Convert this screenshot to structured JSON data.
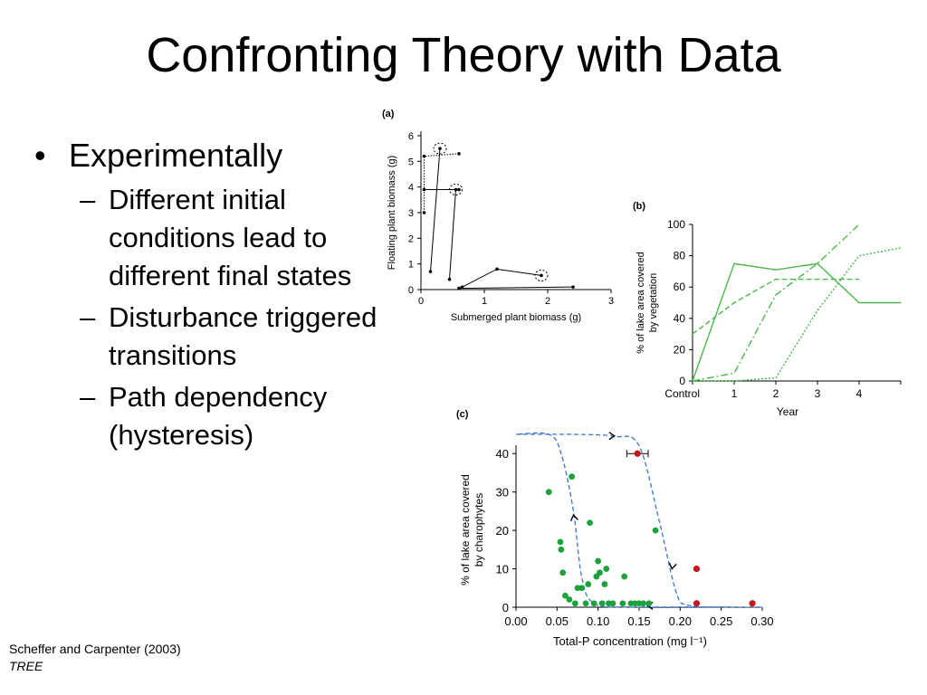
{
  "slide": {
    "title": "Confronting Theory with Data",
    "bullet": "Experimentally",
    "sub_bullets": [
      "Different initial conditions lead to different final states",
      "Disturbance triggered transitions",
      "Path dependency (hysteresis)"
    ],
    "citation": {
      "authors": "Scheffer and Carpenter (2003)",
      "journal": "TREE"
    }
  },
  "chart_data": [
    {
      "panel": "(a)",
      "type": "line",
      "xlabel": "Submerged plant biomass (g)",
      "ylabel": "Floating plant  biomass (g)",
      "xlim": [
        0,
        3
      ],
      "ylim": [
        0,
        6
      ],
      "xticks": [
        "0",
        "1",
        "2",
        "3"
      ],
      "yticks": [
        "0",
        "1",
        "2",
        "3",
        "4",
        "5",
        "6"
      ],
      "series": [
        {
          "values": [
            [
              0.15,
              0.7
            ],
            [
              0.3,
              5.5
            ]
          ],
          "end_circle": true
        },
        {
          "values": [
            [
              0.45,
              0.4
            ],
            [
              0.55,
              3.9
            ]
          ],
          "end_circle": true
        },
        {
          "values": [
            [
              0.6,
              5.3
            ],
            [
              0.05,
              5.2
            ],
            [
              0.05,
              3.0
            ]
          ],
          "dotted": true
        },
        {
          "values": [
            [
              0.6,
              3.9
            ],
            [
              0.05,
              3.9
            ]
          ]
        },
        {
          "values": [
            [
              0.65,
              0.1
            ],
            [
              1.2,
              0.8
            ],
            [
              1.9,
              0.55
            ]
          ],
          "end_circle": true
        },
        {
          "values": [
            [
              0.6,
              0.05
            ],
            [
              2.4,
              0.1
            ]
          ]
        }
      ]
    },
    {
      "panel": "(b)",
      "type": "line",
      "xlabel": "Year",
      "ylabel": "% of lake area covered by vegetation",
      "categories": [
        "Control",
        "1",
        "2",
        "3",
        "4",
        ""
      ],
      "ylim": [
        0,
        100
      ],
      "yticks": [
        "0",
        "20",
        "40",
        "60",
        "80",
        "100"
      ],
      "series": [
        {
          "style": "solid",
          "values": [
            0,
            75,
            71,
            75,
            50,
            50
          ]
        },
        {
          "style": "dashed",
          "values": [
            30,
            50,
            65,
            65,
            65,
            null
          ]
        },
        {
          "style": "dashdot",
          "values": [
            0,
            5,
            55,
            75,
            100,
            null
          ]
        },
        {
          "style": "dotted",
          "values": [
            0,
            0,
            2,
            45,
            80,
            85
          ]
        }
      ],
      "color": "#49b84a"
    },
    {
      "panel": "(c)",
      "type": "scatter",
      "xlabel": "Total-P concentration (mg l⁻¹)",
      "ylabel": "% of lake area covered by charophytes",
      "xlim": [
        0,
        0.3
      ],
      "ylim": [
        0,
        45
      ],
      "xticks": [
        "0.00",
        "0.05",
        "0.10",
        "0.15",
        "0.20",
        "0.25",
        "0.30"
      ],
      "yticks": [
        "0",
        "10",
        "20",
        "30",
        "40"
      ],
      "green_points": [
        [
          0.04,
          30
        ],
        [
          0.054,
          17
        ],
        [
          0.055,
          15
        ],
        [
          0.057,
          9
        ],
        [
          0.06,
          3
        ],
        [
          0.065,
          2
        ],
        [
          0.068,
          34
        ],
        [
          0.072,
          1
        ],
        [
          0.075,
          5
        ],
        [
          0.08,
          5
        ],
        [
          0.085,
          1
        ],
        [
          0.088,
          6
        ],
        [
          0.09,
          22
        ],
        [
          0.095,
          1
        ],
        [
          0.098,
          8
        ],
        [
          0.1,
          12
        ],
        [
          0.102,
          9
        ],
        [
          0.105,
          1
        ],
        [
          0.108,
          6
        ],
        [
          0.11,
          10
        ],
        [
          0.113,
          1
        ],
        [
          0.118,
          1
        ],
        [
          0.13,
          1
        ],
        [
          0.132,
          8
        ],
        [
          0.14,
          1
        ],
        [
          0.145,
          1
        ],
        [
          0.15,
          1
        ],
        [
          0.155,
          1
        ],
        [
          0.162,
          1
        ],
        [
          0.17,
          20
        ]
      ],
      "red_points": [
        [
          0.148,
          40
        ],
        [
          0.22,
          10
        ],
        [
          0.22,
          1
        ],
        [
          0.288,
          1
        ]
      ],
      "curves": [
        {
          "name": "upper",
          "values": [
            [
              0.0,
              45
            ],
            [
              0.07,
              45
            ],
            [
              0.12,
              44.5
            ],
            [
              0.15,
              42
            ],
            [
              0.175,
              22
            ],
            [
              0.195,
              4
            ],
            [
              0.21,
              0.5
            ],
            [
              0.26,
              0
            ],
            [
              0.3,
              0
            ]
          ]
        },
        {
          "name": "lower",
          "values": [
            [
              0.25,
              0
            ],
            [
              0.14,
              0
            ],
            [
              0.095,
              1
            ],
            [
              0.08,
              8
            ],
            [
              0.07,
              25
            ],
            [
              0.055,
              40
            ],
            [
              0.04,
              45
            ],
            [
              0.0,
              45
            ]
          ]
        }
      ],
      "colors": {
        "green": "#1aa33a",
        "red": "#c4161c",
        "curve": "#3a74c9"
      }
    }
  ]
}
